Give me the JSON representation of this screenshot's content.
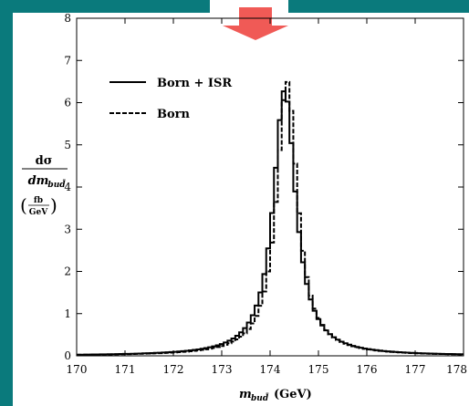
{
  "slide": {
    "background_color": "#0a7a7c",
    "arrow_color": "#f05a56",
    "arrow_icon": "down-arrow-icon"
  },
  "chart_data": {
    "type": "line",
    "title": "",
    "ylabel_num": "dσ",
    "ylabel_den": "dm",
    "ylabel_den_sub": "bud̄",
    "ylabel_unit_num": "fb",
    "ylabel_unit_den": "GeV",
    "xlabel_main": "m",
    "xlabel_sub": "bud̄",
    "xlabel_unit": "(GeV)",
    "xlim": [
      170,
      178
    ],
    "ylim": [
      0,
      8
    ],
    "x_ticks": [
      170,
      171,
      172,
      173,
      174,
      175,
      176,
      177,
      178
    ],
    "y_ticks": [
      0,
      1,
      2,
      3,
      4,
      5,
      6,
      7,
      8
    ],
    "legend_position": "top-left",
    "series": [
      {
        "name": "Born + ISR",
        "style": "solid",
        "peak": 174.3,
        "width": 0.56,
        "amplitude": 6.3
      },
      {
        "name": "Born",
        "style": "dashed",
        "peak": 174.35,
        "width": 0.52,
        "amplitude": 6.5
      }
    ]
  }
}
